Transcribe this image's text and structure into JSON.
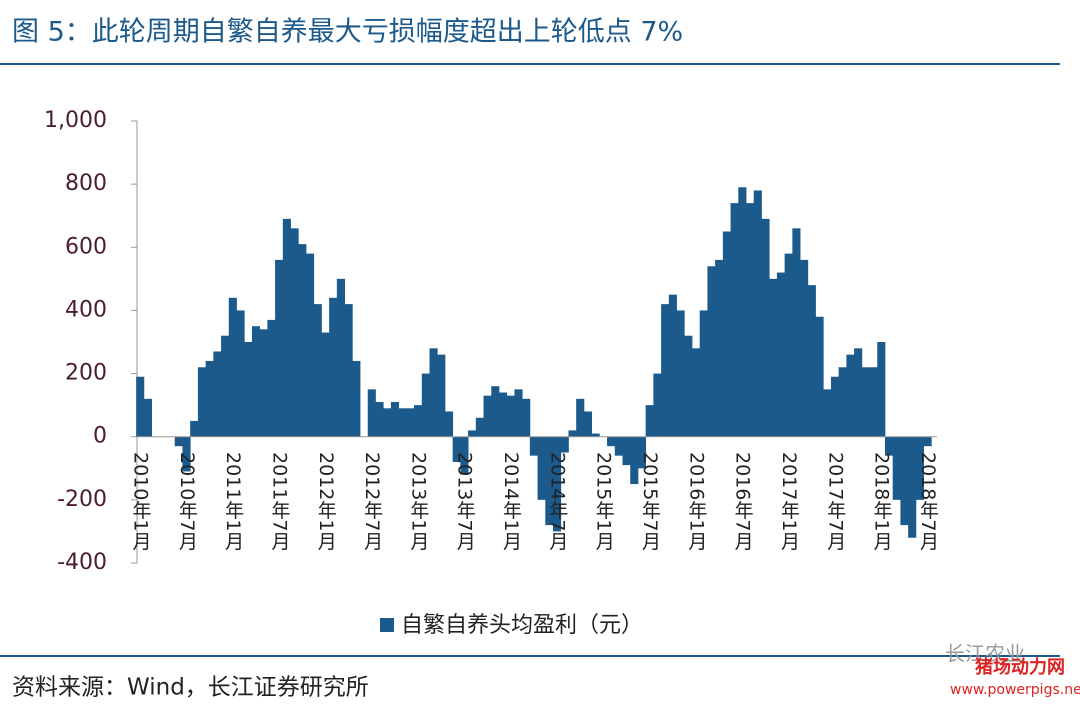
{
  "chart_data": {
    "type": "bar",
    "title": "图 5：此轮周期自繁自养最大亏损幅度超出上轮低点 7%",
    "source": "资料来源：Wind，长江证券研究所",
    "watermarks": [
      "长江农业",
      "猪场动力网",
      "www.powerpigs.net"
    ],
    "series": [
      {
        "name": "自繁自养头均盈利（元）",
        "color": "#1c5a8c",
        "values": [
          190,
          120,
          0,
          0,
          0,
          -30,
          -110,
          50,
          220,
          240,
          270,
          320,
          440,
          400,
          300,
          350,
          340,
          370,
          560,
          690,
          660,
          610,
          580,
          420,
          330,
          440,
          500,
          420,
          240,
          0,
          150,
          110,
          90,
          110,
          90,
          90,
          100,
          200,
          280,
          260,
          80,
          -80,
          -120,
          20,
          60,
          130,
          160,
          140,
          130,
          150,
          120,
          -60,
          -200,
          -280,
          -300,
          -50,
          20,
          120,
          80,
          10,
          0,
          -30,
          -60,
          -90,
          -150,
          -100,
          100,
          200,
          420,
          450,
          400,
          320,
          280,
          400,
          540,
          560,
          650,
          740,
          790,
          740,
          780,
          690,
          500,
          520,
          580,
          660,
          560,
          480,
          380,
          150,
          190,
          220,
          260,
          280,
          220,
          220,
          300,
          -60,
          -200,
          -280,
          -320,
          -200,
          -30
        ]
      }
    ],
    "categories": [
      "2010年1月",
      null,
      null,
      null,
      null,
      null,
      "2010年7月",
      null,
      null,
      null,
      null,
      null,
      "2011年1月",
      null,
      null,
      null,
      null,
      null,
      "2011年7月",
      null,
      null,
      null,
      null,
      null,
      "2012年1月",
      null,
      null,
      null,
      null,
      null,
      "2012年7月",
      null,
      null,
      null,
      null,
      null,
      "2013年1月",
      null,
      null,
      null,
      null,
      null,
      "2013年7月",
      null,
      null,
      null,
      null,
      null,
      "2014年1月",
      null,
      null,
      null,
      null,
      null,
      "2014年7月",
      null,
      null,
      null,
      null,
      null,
      "2015年1月",
      null,
      null,
      null,
      null,
      null,
      "2015年7月",
      null,
      null,
      null,
      null,
      null,
      "2016年1月",
      null,
      null,
      null,
      null,
      null,
      "2016年7月",
      null,
      null,
      null,
      null,
      null,
      "2017年1月",
      null,
      null,
      null,
      null,
      null,
      "2017年7月",
      null,
      null,
      null,
      null,
      null,
      "2018年1月",
      null,
      null,
      null,
      null,
      null,
      "2018年7月"
    ],
    "ylim": [
      -400,
      1000
    ],
    "yticks": [
      -400,
      -200,
      0,
      200,
      400,
      600,
      800,
      {
        "value": 1000,
        "label": "1,000"
      }
    ],
    "grid": false
  }
}
